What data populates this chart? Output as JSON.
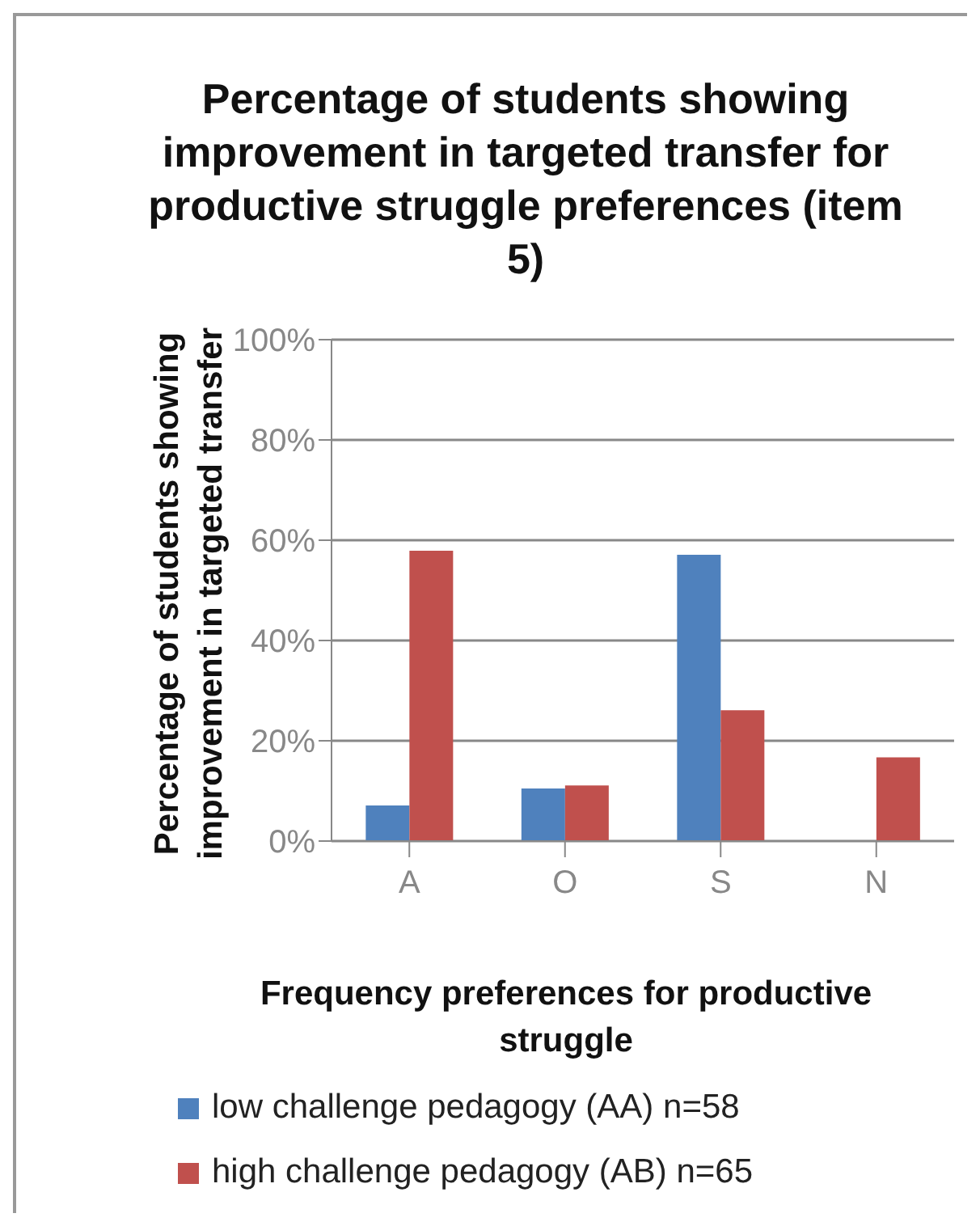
{
  "chart_data": {
    "type": "bar",
    "title": "Percentage of students showing improvement in targeted transfer for  productive struggle preferences (item 5)",
    "xlabel": "Frequency preferences for productive struggle",
    "ylabel": "Percentage of students showing improvement in targeted transfer",
    "categories": [
      "A",
      "O",
      "S",
      "N"
    ],
    "series": [
      {
        "name": "low challenge pedagogy (AA) n=58",
        "color": "#4f81bd",
        "values": [
          7.1,
          10.5,
          57.1,
          0
        ]
      },
      {
        "name": "high challenge pedagogy (AB)  n=65",
        "color": "#c0504d",
        "values": [
          57.9,
          11.1,
          26.1,
          16.7
        ]
      }
    ],
    "ylim": [
      0,
      100
    ],
    "yticks": [
      {
        "value": 0,
        "label": "0%"
      },
      {
        "value": 20,
        "label": "20%"
      },
      {
        "value": 40,
        "label": "40%"
      },
      {
        "value": 60,
        "label": "60%"
      },
      {
        "value": 80,
        "label": "80%"
      },
      {
        "value": 100,
        "label": "100%"
      }
    ],
    "grid": "y",
    "legend": "bottom"
  }
}
